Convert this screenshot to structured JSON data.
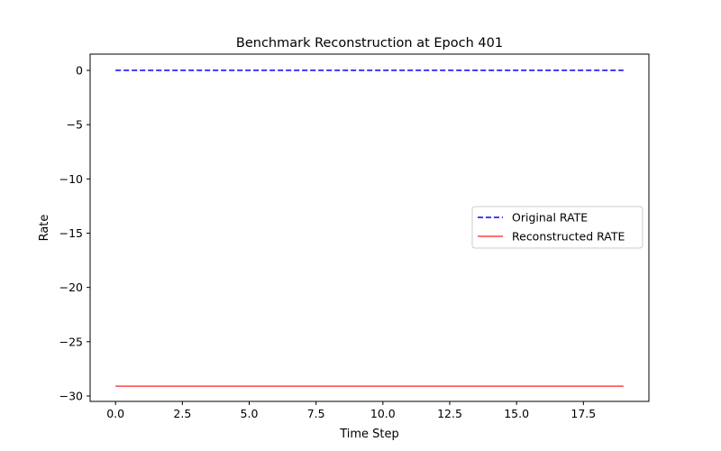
{
  "chart_data": {
    "type": "line",
    "title": "Benchmark Reconstruction at Epoch 401",
    "xlabel": "Time Step",
    "ylabel": "Rate",
    "xlim": [
      -0.95,
      19.95
    ],
    "ylim": [
      -30.5,
      1.5
    ],
    "x_ticks": [
      0.0,
      2.5,
      5.0,
      7.5,
      10.0,
      12.5,
      15.0,
      17.5
    ],
    "x_tick_labels": [
      "0.0",
      "2.5",
      "5.0",
      "7.5",
      "10.0",
      "12.5",
      "15.0",
      "17.5"
    ],
    "y_ticks": [
      0,
      -5,
      -10,
      -15,
      -20,
      -25,
      -30
    ],
    "y_tick_labels": [
      "0",
      "−5",
      "−10",
      "−15",
      "−20",
      "−25",
      "−30"
    ],
    "grid": false,
    "legend_position": "center-right",
    "x": [
      0,
      1,
      2,
      3,
      4,
      5,
      6,
      7,
      8,
      9,
      10,
      11,
      12,
      13,
      14,
      15,
      16,
      17,
      18,
      19
    ],
    "series": [
      {
        "name": "Original RATE",
        "style": "dashed",
        "color": "#0000ff",
        "values": [
          0,
          0,
          0,
          0,
          0,
          0,
          0,
          0,
          0,
          0,
          0,
          0,
          0,
          0,
          0,
          0,
          0,
          0,
          0,
          0
        ]
      },
      {
        "name": "Reconstructed RATE",
        "style": "solid",
        "color": "#ff4444",
        "values": [
          -29.1,
          -29.1,
          -29.1,
          -29.1,
          -29.1,
          -29.1,
          -29.1,
          -29.1,
          -29.1,
          -29.1,
          -29.1,
          -29.1,
          -29.1,
          -29.1,
          -29.1,
          -29.1,
          -29.1,
          -29.1,
          -29.1,
          -29.1
        ]
      }
    ]
  }
}
